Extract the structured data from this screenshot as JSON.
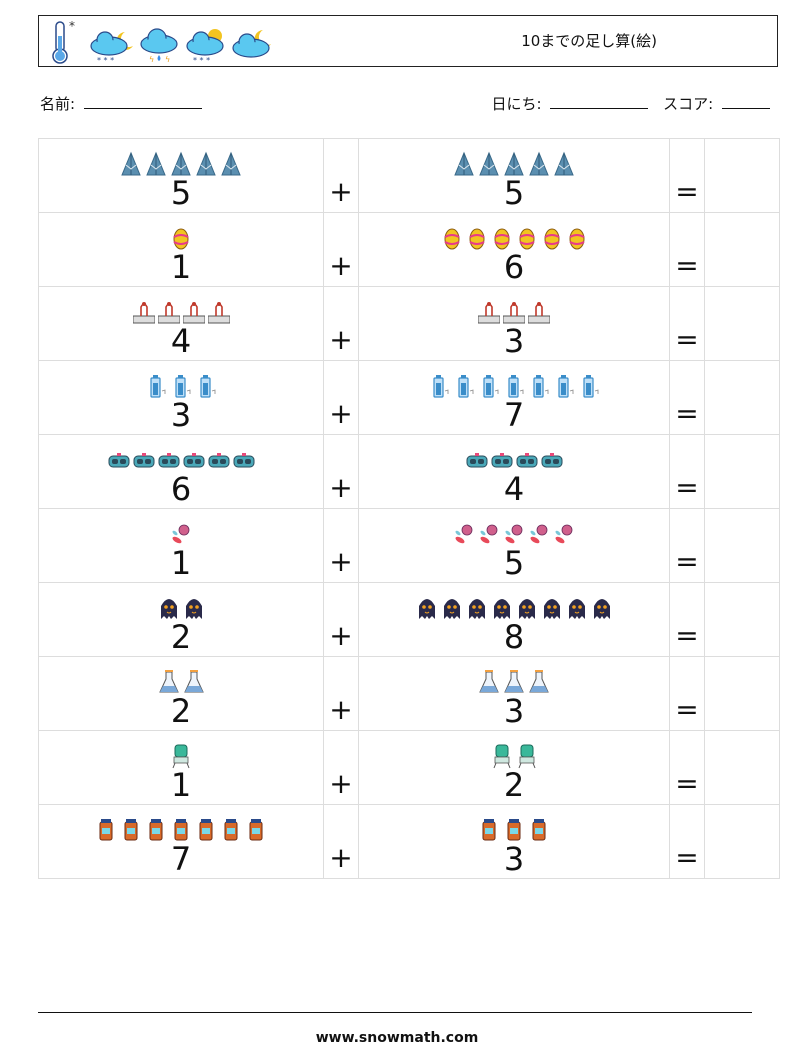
{
  "header": {
    "title": "10までの足し算(絵)",
    "icons": [
      "thermometer-icon",
      "cloud-moon-snow-icon",
      "cloud-rain-icon",
      "cloud-sun-snow-icon",
      "cloud-moon-icon"
    ]
  },
  "info": {
    "name_label": "名前:",
    "date_label": "日にち:",
    "score_label": "スコア:"
  },
  "problems": [
    {
      "a": "5",
      "b": "5",
      "icon": "mountain-icon",
      "color": "#5b8fb0",
      "plus": "+",
      "equals": "="
    },
    {
      "a": "1",
      "b": "6",
      "icon": "easter-egg-icon",
      "color": "#f2c420",
      "plus": "+",
      "equals": "="
    },
    {
      "a": "4",
      "b": "3",
      "icon": "cable-car-icon",
      "color": "#c0392b",
      "plus": "+",
      "equals": "="
    },
    {
      "a": "3",
      "b": "7",
      "icon": "battery-icon",
      "color": "#3a8dc9",
      "plus": "+",
      "equals": "="
    },
    {
      "a": "6",
      "b": "4",
      "icon": "vr-goggles-icon",
      "color": "#4aa8b8",
      "plus": "+",
      "equals": "="
    },
    {
      "a": "1",
      "b": "5",
      "icon": "candy-icon",
      "color": "#d0608c",
      "plus": "+",
      "equals": "="
    },
    {
      "a": "2",
      "b": "8",
      "icon": "ghost-icon",
      "color": "#2a2a4a",
      "plus": "+",
      "equals": "="
    },
    {
      "a": "2",
      "b": "3",
      "icon": "flask-icon",
      "color": "#7aa8d8",
      "plus": "+",
      "equals": "="
    },
    {
      "a": "1",
      "b": "2",
      "icon": "water-cooler-icon",
      "color": "#3ab89a",
      "plus": "+",
      "equals": "="
    },
    {
      "a": "7",
      "b": "3",
      "icon": "medicine-bottle-icon",
      "color": "#d86a2a",
      "plus": "+",
      "equals": "="
    }
  ],
  "footer": {
    "url": "www.snowmath.com"
  }
}
